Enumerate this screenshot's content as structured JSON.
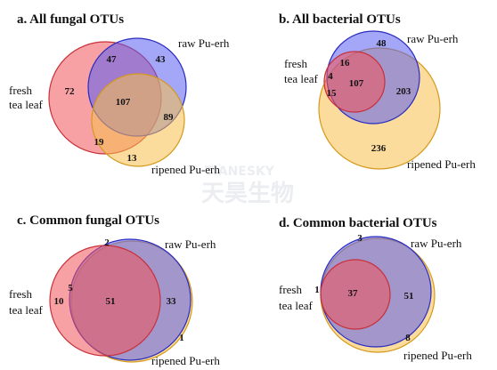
{
  "chart_data": [
    {
      "type": "venn",
      "title": "a.  All fungal OTUs",
      "sets": [
        {
          "label": "fresh\ntea leaf",
          "color": "#f2545b"
        },
        {
          "label": "raw Pu-erh",
          "color": "#5a5cf0"
        },
        {
          "label": "ripened Pu-erh",
          "color": "#f8c04d"
        }
      ],
      "regions": [
        {
          "sets": [
            "fresh tea leaf"
          ],
          "value": 72
        },
        {
          "sets": [
            "raw Pu-erh"
          ],
          "value": 43
        },
        {
          "sets": [
            "ripened Pu-erh"
          ],
          "value": 13
        },
        {
          "sets": [
            "fresh tea leaf",
            "raw Pu-erh"
          ],
          "value": 47
        },
        {
          "sets": [
            "fresh tea leaf",
            "ripened Pu-erh"
          ],
          "value": 19
        },
        {
          "sets": [
            "raw Pu-erh",
            "ripened Pu-erh"
          ],
          "value": 89
        },
        {
          "sets": [
            "fresh tea leaf",
            "raw Pu-erh",
            "ripened Pu-erh"
          ],
          "value": 107
        }
      ]
    },
    {
      "type": "venn",
      "title": "b.  All bacterial OTUs",
      "sets": [
        {
          "label": "fresh\ntea leaf",
          "color": "#f2545b"
        },
        {
          "label": "raw Pu-erh",
          "color": "#5a5cf0"
        },
        {
          "label": "ripened Pu-erh",
          "color": "#f8c04d"
        }
      ],
      "regions": [
        {
          "sets": [
            "fresh tea leaf"
          ],
          "value": 4
        },
        {
          "sets": [
            "raw Pu-erh"
          ],
          "value": 48
        },
        {
          "sets": [
            "ripened Pu-erh"
          ],
          "value": 236
        },
        {
          "sets": [
            "fresh tea leaf",
            "raw Pu-erh"
          ],
          "value": 16
        },
        {
          "sets": [
            "fresh tea leaf",
            "ripened Pu-erh"
          ],
          "value": 15
        },
        {
          "sets": [
            "raw Pu-erh",
            "ripened Pu-erh"
          ],
          "value": 203
        },
        {
          "sets": [
            "fresh tea leaf",
            "raw Pu-erh",
            "ripened Pu-erh"
          ],
          "value": 107
        }
      ]
    },
    {
      "type": "venn",
      "title": "c.  Common fungal OTUs",
      "sets": [
        {
          "label": "fresh\ntea leaf",
          "color": "#f2545b"
        },
        {
          "label": "raw Pu-erh",
          "color": "#5a5cf0"
        },
        {
          "label": "ripened Pu-erh",
          "color": "#f8c04d"
        }
      ],
      "regions": [
        {
          "sets": [
            "raw Pu-erh"
          ],
          "value": 2
        },
        {
          "sets": [
            "ripened Pu-erh"
          ],
          "value": 1
        },
        {
          "sets": [
            "fresh tea leaf",
            "raw Pu-erh"
          ],
          "value": 10
        },
        {
          "sets": [
            "fresh tea leaf",
            "ripened Pu-erh"
          ],
          "value": 5
        },
        {
          "sets": [
            "raw Pu-erh",
            "ripened Pu-erh"
          ],
          "value": 33
        },
        {
          "sets": [
            "fresh tea leaf",
            "raw Pu-erh",
            "ripened Pu-erh"
          ],
          "value": 51
        }
      ]
    },
    {
      "type": "venn",
      "title": "d.  Common bacterial OTUs",
      "sets": [
        {
          "label": "fresh\ntea leaf",
          "color": "#f2545b"
        },
        {
          "label": "raw Pu-erh",
          "color": "#5a5cf0"
        },
        {
          "label": "ripened Pu-erh",
          "color": "#f8c04d"
        }
      ],
      "regions": [
        {
          "sets": [
            "raw Pu-erh"
          ],
          "value": 3
        },
        {
          "sets": [
            "ripened Pu-erh"
          ],
          "value": 8
        },
        {
          "sets": [
            "fresh tea leaf",
            "raw Pu-erh"
          ],
          "value": 1
        },
        {
          "sets": [
            "raw Pu-erh",
            "ripened Pu-erh"
          ],
          "value": 51
        },
        {
          "sets": [
            "fresh tea leaf",
            "raw Pu-erh",
            "ripened Pu-erh"
          ],
          "value": 37
        }
      ]
    }
  ],
  "watermark": {
    "line1": "TIANESKY",
    "line2": "天昊生物"
  }
}
